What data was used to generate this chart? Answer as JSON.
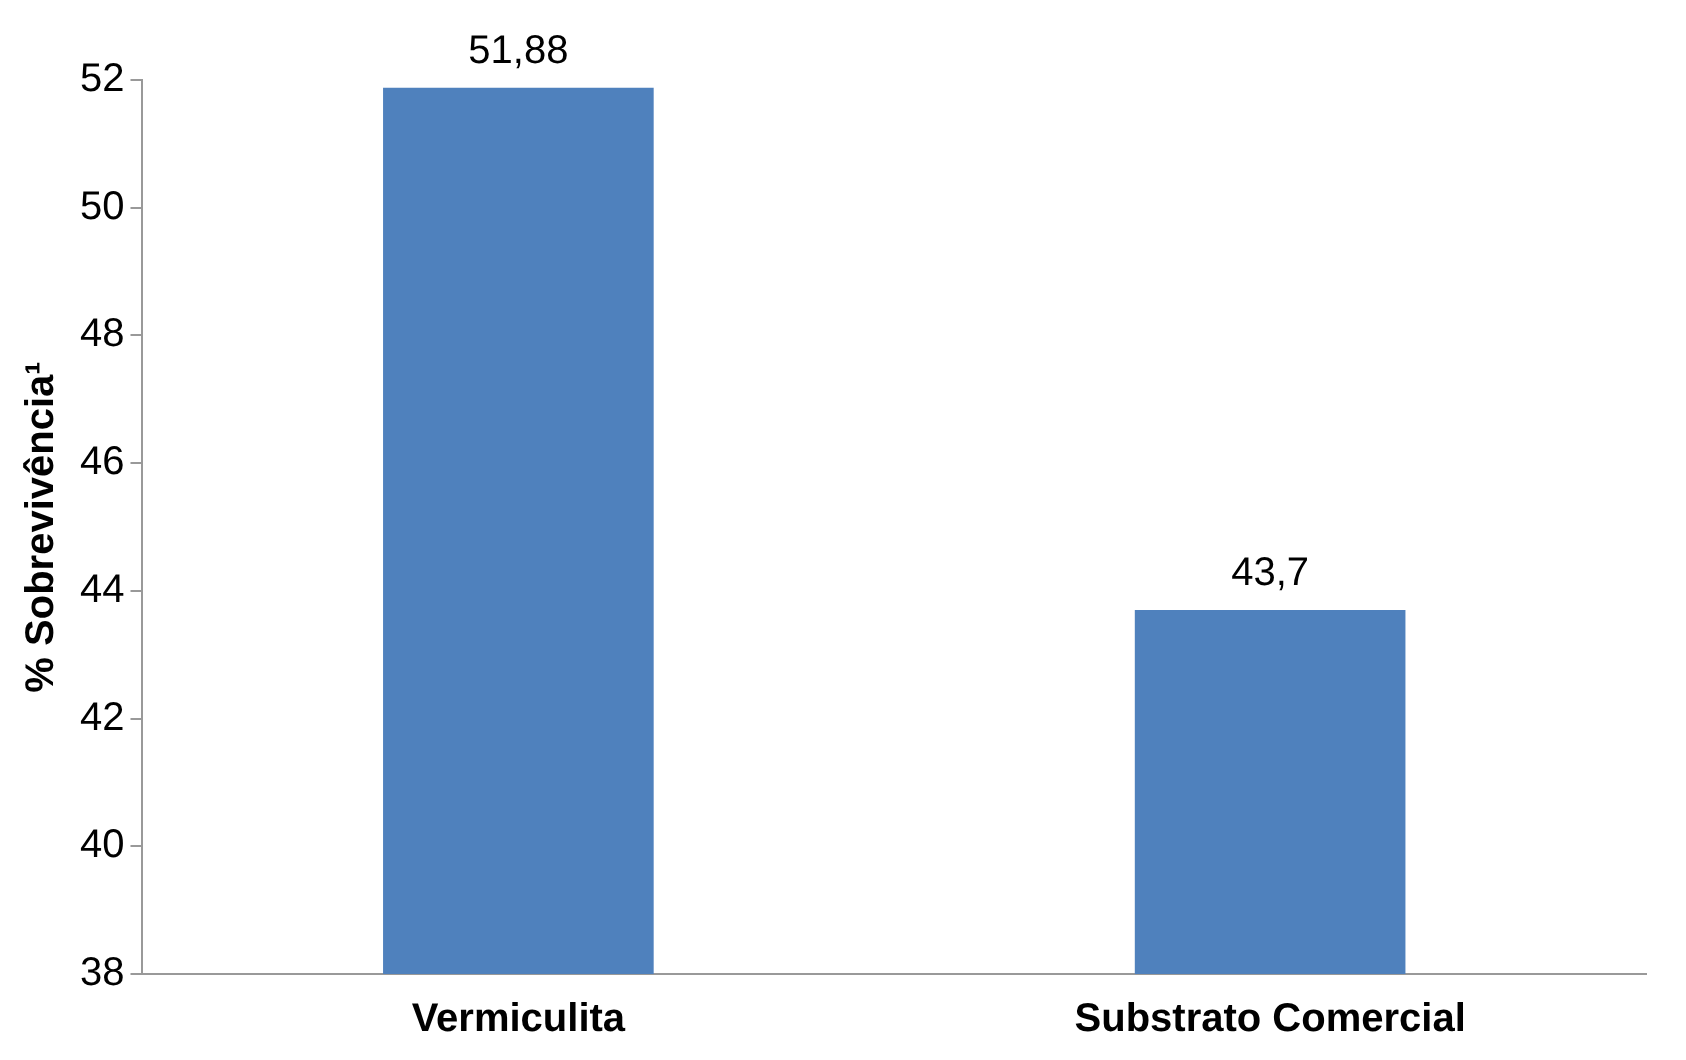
{
  "chart_data": {
    "type": "bar",
    "ylabel": "% Sobrevivência¹",
    "categories": [
      "Vermiculita",
      "Substrato Comercial"
    ],
    "values": [
      51.88,
      43.7
    ],
    "color": "#4f81bd",
    "value_labels": [
      "51,88",
      "43,7"
    ],
    "ylim": [
      38,
      52
    ],
    "yticks": [
      38,
      40,
      42,
      44,
      46,
      48,
      50,
      52
    ],
    "grid": false,
    "legend": false
  }
}
